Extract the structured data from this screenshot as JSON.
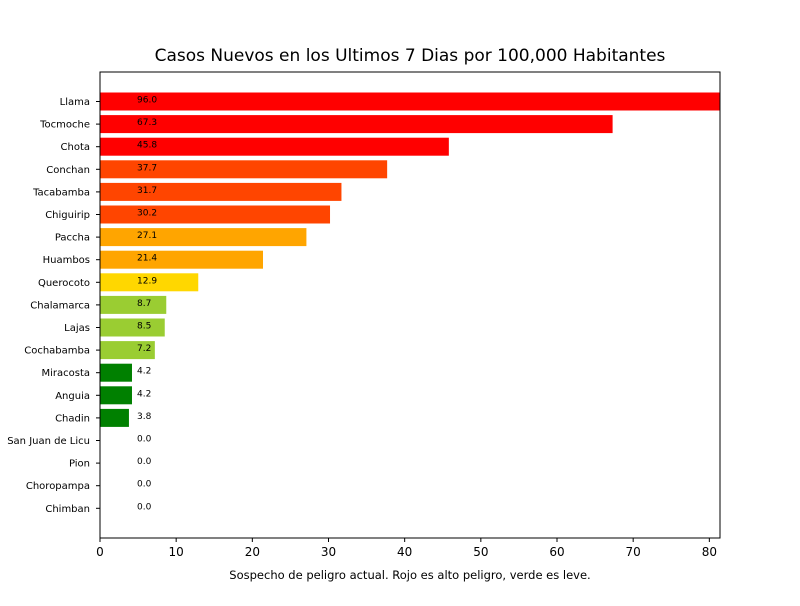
{
  "chart_data": {
    "type": "bar",
    "orientation": "horizontal",
    "title": "Casos Nuevos en los Ultimos 7 Dias por 100,000 Habitantes",
    "xlabel": "Sospecho de peligro actual. Rojo es alto peligro, verde es leve.",
    "ylabel": "",
    "xlim": [
      0,
      81.4
    ],
    "xticks": [
      0,
      10,
      20,
      30,
      40,
      50,
      60,
      70,
      80
    ],
    "grid": false,
    "categories": [
      "Llama",
      "Tocmoche",
      "Chota",
      "Conchan",
      "Tacabamba",
      "Chiguirip",
      "Paccha",
      "Huambos",
      "Querocoto",
      "Chalamarca",
      "Lajas",
      "Cochabamba",
      "Miracosta",
      "Anguia",
      "Chadin",
      "San Juan de Licu",
      "Pion",
      "Choropampa",
      "Chimban"
    ],
    "values": [
      96.0,
      67.3,
      45.8,
      37.7,
      31.7,
      30.2,
      27.1,
      21.4,
      12.9,
      8.7,
      8.5,
      7.2,
      4.2,
      4.2,
      3.8,
      0.0,
      0.0,
      0.0,
      0.0
    ],
    "value_labels": [
      "96.0",
      "67.3",
      "45.8",
      "37.7",
      "31.7",
      "30.2",
      "27.1",
      "21.4",
      "12.9",
      "8.7",
      "8.5",
      "7.2",
      "4.2",
      "4.2",
      "3.8",
      "0.0",
      "0.0",
      "0.0",
      "0.0"
    ],
    "colors": [
      "#ff0000",
      "#ff0000",
      "#ff0000",
      "#ff4500",
      "#ff4500",
      "#ff4500",
      "#ffa500",
      "#ffa500",
      "#ffd700",
      "#9acd32",
      "#9acd32",
      "#9acd32",
      "#008000",
      "#008000",
      "#008000",
      "#008000",
      "#008000",
      "#008000",
      "#008000"
    ]
  }
}
